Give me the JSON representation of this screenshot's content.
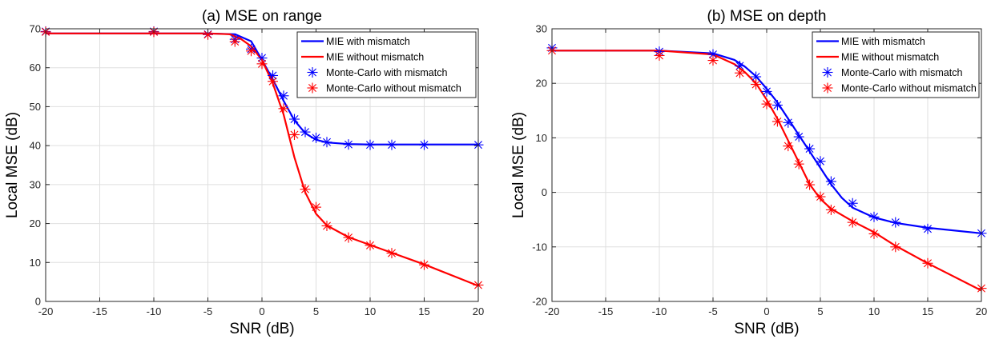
{
  "chart_data": [
    {
      "type": "line",
      "title": "(a) MSE on range",
      "xlabel": "SNR (dB)",
      "ylabel": "Local MSE (dB)",
      "xlim": [
        -20,
        20
      ],
      "ylim": [
        0,
        70
      ],
      "xticks": [
        -20,
        -15,
        -10,
        -5,
        0,
        5,
        10,
        15,
        20
      ],
      "yticks": [
        0,
        10,
        20,
        30,
        40,
        50,
        60,
        70
      ],
      "grid": true,
      "legend_position": "top-right",
      "series": [
        {
          "name": "MIE with mismatch",
          "style": "line",
          "color": "#0000ff",
          "x": [
            -20,
            -10,
            -5,
            -2.5,
            -1,
            0,
            1,
            2,
            3,
            4,
            5,
            6,
            8,
            10,
            12,
            15,
            20
          ],
          "y": [
            68.8,
            68.8,
            68.8,
            68.6,
            66.8,
            62,
            57,
            51.5,
            46.5,
            43.2,
            41.5,
            40.8,
            40.4,
            40.3,
            40.3,
            40.3,
            40.3
          ]
        },
        {
          "name": "MIE without mismatch",
          "style": "line",
          "color": "#ff0000",
          "x": [
            -20,
            -10,
            -5,
            -3,
            -2,
            -1,
            0,
            1,
            2,
            3,
            4,
            5,
            6,
            8,
            10,
            12,
            15,
            20
          ],
          "y": [
            68.8,
            68.8,
            68.8,
            68.6,
            67.5,
            65.5,
            62,
            56,
            48,
            37,
            28,
            22.5,
            19.5,
            16.5,
            14.5,
            12.5,
            9.5,
            4
          ]
        },
        {
          "name": "Monte-Carlo with mismatch",
          "style": "markers",
          "color": "#0000ff",
          "x": [
            -20,
            -10,
            -5,
            -2.5,
            -1,
            0,
            1,
            2,
            3,
            4,
            5,
            6,
            8,
            10,
            12,
            15,
            20
          ],
          "y": [
            69.3,
            69.3,
            68.6,
            67.3,
            64.8,
            62.5,
            58,
            52.8,
            46.8,
            43.5,
            42,
            40.9,
            40.3,
            40.2,
            40.2,
            40.2,
            40.2
          ]
        },
        {
          "name": "Monte-Carlo without mismatch",
          "style": "markers",
          "color": "#ff0000",
          "x": [
            -20,
            -10,
            -5,
            -2.5,
            -1,
            0,
            1,
            2,
            3,
            4,
            5,
            6,
            8,
            10,
            12,
            15,
            20
          ],
          "y": [
            69.2,
            69.2,
            68.5,
            66.7,
            64.3,
            61,
            56.5,
            49.5,
            42.8,
            28.8,
            24.2,
            19.4,
            16.4,
            14.4,
            12.4,
            9.4,
            4.2
          ]
        }
      ]
    },
    {
      "type": "line",
      "title": "(b) MSE on depth",
      "xlabel": "SNR (dB)",
      "ylabel": "Local MSE (dB)",
      "xlim": [
        -20,
        20
      ],
      "ylim": [
        -20,
        30
      ],
      "xticks": [
        -20,
        -15,
        -10,
        -5,
        0,
        5,
        10,
        15,
        20
      ],
      "yticks": [
        -20,
        -10,
        0,
        10,
        20,
        30
      ],
      "grid": true,
      "legend_position": "top-right",
      "series": [
        {
          "name": "MIE with mismatch",
          "style": "line",
          "color": "#0000ff",
          "x": [
            -20,
            -10,
            -5,
            -3,
            -2,
            -1,
            0,
            1,
            2,
            3,
            4,
            5,
            6,
            7,
            8,
            10,
            12,
            15,
            20
          ],
          "y": [
            26,
            26,
            25.5,
            24.3,
            23,
            21.3,
            19,
            16.5,
            13.5,
            10.5,
            7.5,
            4.5,
            1.5,
            -1,
            -2.8,
            -4.6,
            -5.6,
            -6.5,
            -7.5
          ]
        },
        {
          "name": "MIE without mismatch",
          "style": "line",
          "color": "#ff0000",
          "x": [
            -20,
            -10,
            -5,
            -3,
            -2,
            -1,
            0,
            1,
            2,
            3,
            4,
            5,
            6,
            8,
            10,
            12,
            15,
            20
          ],
          "y": [
            26,
            26,
            25.3,
            23.5,
            22,
            20,
            17,
            13.5,
            9.5,
            5.5,
            1.5,
            -1.2,
            -3,
            -5.3,
            -7.3,
            -9.8,
            -13,
            -18
          ]
        },
        {
          "name": "Monte-Carlo with mismatch",
          "style": "markers",
          "color": "#0000ff",
          "x": [
            -20,
            -10,
            -5,
            -2.5,
            -1,
            0,
            1,
            2,
            3,
            4,
            5,
            6,
            8,
            10,
            12,
            15,
            20
          ],
          "y": [
            26.5,
            25.8,
            25.3,
            23.2,
            21.2,
            18.5,
            16,
            12.8,
            10.2,
            8,
            5.7,
            2,
            -2,
            -4.5,
            -5.5,
            -6.7,
            -7.5
          ]
        },
        {
          "name": "Monte-Carlo without mismatch",
          "style": "markers",
          "color": "#ff0000",
          "x": [
            -20,
            -10,
            -5,
            -2.5,
            -1,
            0,
            1,
            2,
            3,
            4,
            5,
            6,
            8,
            10,
            12,
            15,
            20
          ],
          "y": [
            26,
            25.1,
            24.2,
            21.9,
            19.8,
            16.2,
            13,
            8.5,
            5.2,
            1.4,
            -0.8,
            -3.2,
            -5.5,
            -7.6,
            -10,
            -13,
            -17.6
          ]
        }
      ]
    }
  ]
}
